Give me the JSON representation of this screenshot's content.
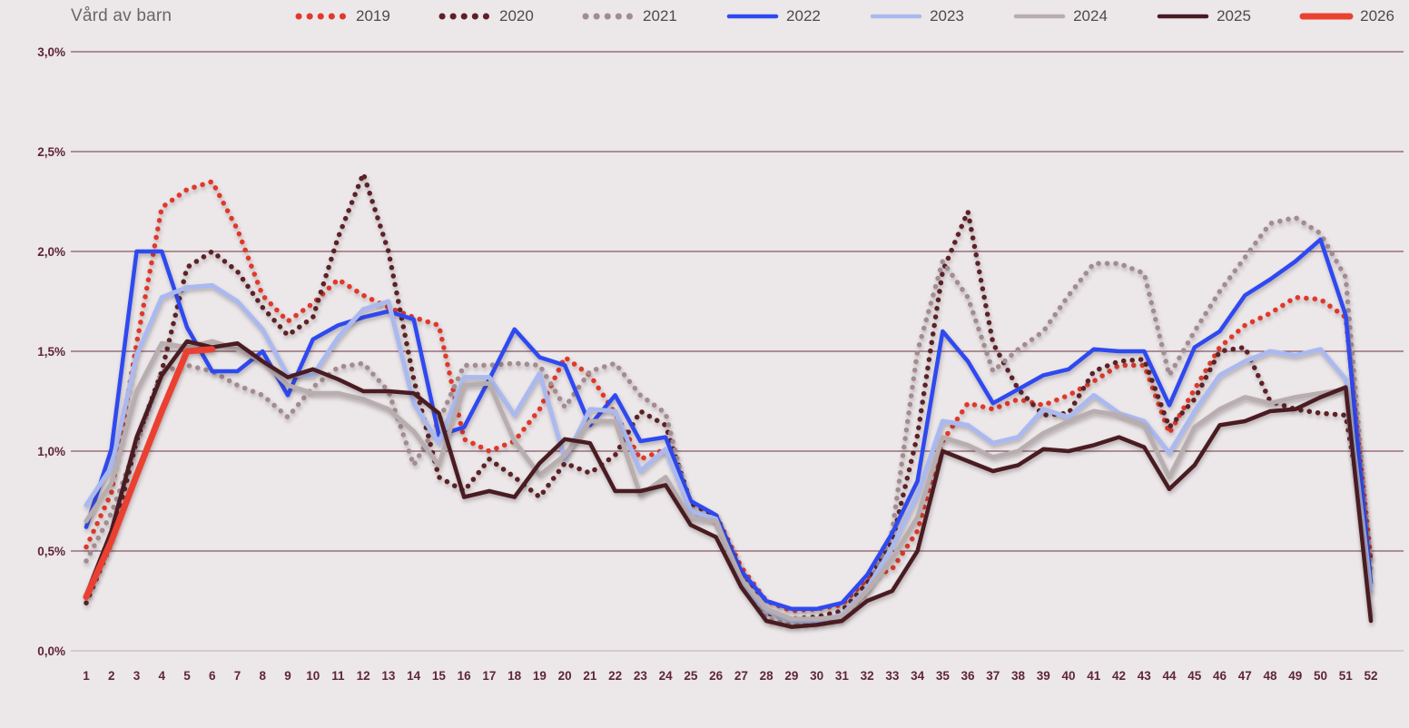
{
  "title": "Vård av barn",
  "palette": {
    "background": "#ece7e9",
    "gridline": "#6b3344",
    "zero_line": "#c9c3c6",
    "tick_label": "#5e2637",
    "title_text": "#69666a",
    "legend_text": "#4b4b4b"
  },
  "chart_data": {
    "type": "line",
    "title": "Vård av barn",
    "xlabel": "",
    "ylabel": "",
    "ylim": [
      0.0,
      3.0
    ],
    "grid": "horizontal",
    "legend_position": "top",
    "y_ticks": [
      {
        "v": 3.0,
        "label": "3,0%"
      },
      {
        "v": 2.5,
        "label": "2,5%"
      },
      {
        "v": 2.0,
        "label": "2,0%"
      },
      {
        "v": 1.5,
        "label": "1,5%"
      },
      {
        "v": 1.0,
        "label": "1,0%"
      },
      {
        "v": 0.5,
        "label": "0,5%"
      },
      {
        "v": 0.0,
        "label": "0,0%"
      }
    ],
    "x": [
      1,
      2,
      3,
      4,
      5,
      6,
      7,
      8,
      9,
      10,
      11,
      12,
      13,
      14,
      15,
      16,
      17,
      18,
      19,
      20,
      21,
      22,
      23,
      24,
      25,
      26,
      27,
      28,
      29,
      30,
      31,
      32,
      33,
      34,
      35,
      36,
      37,
      38,
      39,
      40,
      41,
      42,
      43,
      44,
      45,
      46,
      47,
      48,
      49,
      50,
      51,
      52
    ],
    "series": [
      {
        "name": "2019",
        "style": "dotted",
        "color": "#e0392c",
        "width": 5.5,
        "values": [
          0.52,
          0.79,
          1.54,
          2.22,
          2.31,
          2.35,
          2.11,
          1.78,
          1.65,
          1.74,
          1.86,
          1.78,
          1.72,
          1.67,
          1.63,
          1.06,
          1.0,
          1.05,
          1.21,
          1.47,
          1.38,
          1.19,
          0.96,
          1.01,
          0.74,
          0.68,
          0.42,
          0.25,
          0.2,
          0.21,
          0.23,
          0.36,
          0.41,
          0.6,
          1.05,
          1.24,
          1.21,
          1.26,
          1.23,
          1.28,
          1.35,
          1.43,
          1.43,
          1.09,
          1.31,
          1.52,
          1.63,
          1.69,
          1.77,
          1.76,
          1.67,
          0.46
        ]
      },
      {
        "name": "2020",
        "style": "dotted",
        "color": "#5c2026",
        "width": 5.5,
        "values": [
          0.24,
          0.54,
          1.05,
          1.4,
          1.92,
          2.0,
          1.9,
          1.72,
          1.58,
          1.67,
          2.07,
          2.39,
          2.0,
          1.36,
          0.87,
          0.8,
          0.96,
          0.87,
          0.77,
          0.94,
          0.89,
          0.98,
          1.2,
          1.13,
          0.74,
          0.67,
          0.4,
          0.19,
          0.16,
          0.17,
          0.2,
          0.34,
          0.55,
          1.08,
          1.9,
          2.2,
          1.54,
          1.31,
          1.18,
          1.19,
          1.4,
          1.45,
          1.46,
          1.12,
          1.26,
          1.5,
          1.52,
          1.25,
          1.21,
          1.19,
          1.18,
          0.44
        ]
      },
      {
        "name": "2021",
        "style": "dotted",
        "color": "#a28c91",
        "width": 5.5,
        "values": [
          0.45,
          0.69,
          1.03,
          1.4,
          1.43,
          1.4,
          1.33,
          1.28,
          1.17,
          1.32,
          1.42,
          1.44,
          1.3,
          0.93,
          1.15,
          1.43,
          1.43,
          1.44,
          1.43,
          1.22,
          1.4,
          1.44,
          1.28,
          1.19,
          0.7,
          0.66,
          0.38,
          0.16,
          0.13,
          0.14,
          0.16,
          0.3,
          0.6,
          1.5,
          1.95,
          1.77,
          1.4,
          1.51,
          1.6,
          1.78,
          1.94,
          1.94,
          1.89,
          1.38,
          1.6,
          1.8,
          1.97,
          2.14,
          2.17,
          2.09,
          1.87,
          0.4
        ]
      },
      {
        "name": "2022",
        "style": "solid",
        "color": "#2f49f0",
        "width": 4.5,
        "values": [
          0.62,
          1.01,
          2.0,
          2.0,
          1.62,
          1.4,
          1.4,
          1.5,
          1.28,
          1.56,
          1.63,
          1.67,
          1.7,
          1.66,
          1.08,
          1.12,
          1.36,
          1.61,
          1.47,
          1.43,
          1.13,
          1.28,
          1.05,
          1.07,
          0.75,
          0.68,
          0.4,
          0.25,
          0.21,
          0.21,
          0.24,
          0.38,
          0.59,
          0.85,
          1.6,
          1.45,
          1.24,
          1.31,
          1.38,
          1.41,
          1.51,
          1.5,
          1.5,
          1.23,
          1.52,
          1.6,
          1.78,
          1.86,
          1.95,
          2.06,
          1.68,
          0.34
        ]
      },
      {
        "name": "2023",
        "style": "solid",
        "color": "#aab9ef",
        "width": 5,
        "values": [
          0.73,
          0.92,
          1.48,
          1.77,
          1.82,
          1.83,
          1.75,
          1.61,
          1.38,
          1.38,
          1.57,
          1.71,
          1.75,
          1.24,
          1.04,
          1.37,
          1.37,
          1.18,
          1.39,
          0.96,
          1.21,
          1.2,
          0.9,
          1.01,
          0.7,
          0.66,
          0.34,
          0.2,
          0.15,
          0.15,
          0.18,
          0.31,
          0.52,
          0.78,
          1.15,
          1.13,
          1.04,
          1.07,
          1.21,
          1.17,
          1.28,
          1.19,
          1.15,
          0.99,
          1.2,
          1.38,
          1.45,
          1.5,
          1.48,
          1.51,
          1.36,
          0.3
        ]
      },
      {
        "name": "2024",
        "style": "solid",
        "color": "#b8adaf",
        "width": 5,
        "values": [
          0.65,
          0.84,
          1.3,
          1.54,
          1.52,
          1.55,
          1.51,
          1.45,
          1.33,
          1.29,
          1.29,
          1.26,
          1.21,
          1.1,
          0.93,
          1.33,
          1.34,
          1.05,
          0.88,
          0.98,
          1.15,
          1.15,
          0.78,
          0.87,
          0.66,
          0.65,
          0.36,
          0.21,
          0.16,
          0.16,
          0.17,
          0.3,
          0.46,
          0.67,
          1.07,
          1.03,
          0.97,
          1.0,
          1.09,
          1.15,
          1.2,
          1.18,
          1.13,
          0.87,
          1.12,
          1.21,
          1.27,
          1.24,
          1.27,
          1.29,
          1.31,
          0.18
        ]
      },
      {
        "name": "2025",
        "style": "solid",
        "color": "#4a1a23",
        "width": 4.5,
        "values": [
          0.28,
          0.6,
          1.07,
          1.38,
          1.55,
          1.52,
          1.54,
          1.45,
          1.37,
          1.41,
          1.36,
          1.3,
          1.3,
          1.29,
          1.19,
          0.77,
          0.8,
          0.77,
          0.94,
          1.06,
          1.04,
          0.8,
          0.8,
          0.83,
          0.63,
          0.57,
          0.32,
          0.15,
          0.12,
          0.13,
          0.15,
          0.25,
          0.3,
          0.5,
          1.0,
          0.95,
          0.9,
          0.93,
          1.01,
          1.0,
          1.03,
          1.07,
          1.02,
          0.81,
          0.93,
          1.13,
          1.15,
          1.2,
          1.21,
          1.27,
          1.32,
          0.15
        ]
      },
      {
        "name": "2026",
        "style": "solid",
        "color": "#ea4130",
        "width": 7,
        "values": [
          0.27,
          0.55,
          0.88,
          1.2,
          1.5,
          1.51,
          null,
          null,
          null,
          null,
          null,
          null,
          null,
          null,
          null,
          null,
          null,
          null,
          null,
          null,
          null,
          null,
          null,
          null,
          null,
          null,
          null,
          null,
          null,
          null,
          null,
          null,
          null,
          null,
          null,
          null,
          null,
          null,
          null,
          null,
          null,
          null,
          null,
          null,
          null,
          null,
          null,
          null,
          null,
          null,
          null,
          null
        ]
      }
    ]
  }
}
